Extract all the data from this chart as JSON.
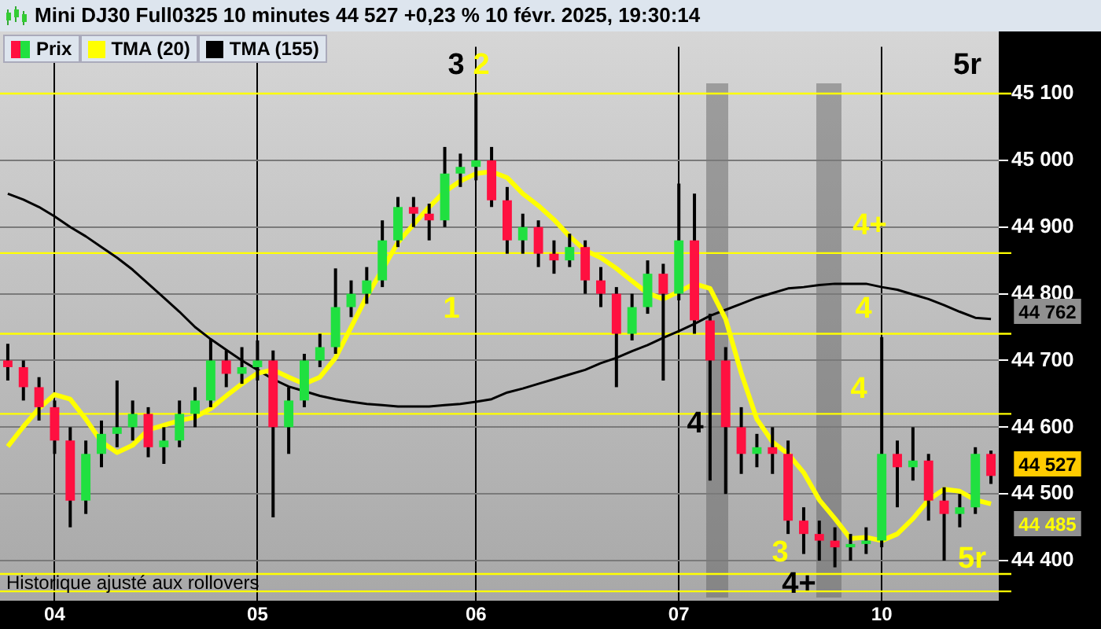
{
  "chart_data": {
    "type": "candlestick",
    "title": "Mini DJ30 Full0325 10 minutes 44 527 +0,23 % 10 févr. 2025, 19:30:14",
    "categories": [
      null,
      null,
      null,
      "04",
      null,
      null,
      null,
      null,
      null,
      null,
      null,
      null,
      null,
      null,
      null,
      null,
      "05",
      null,
      null,
      null,
      null,
      null,
      null,
      null,
      null,
      null,
      null,
      null,
      null,
      null,
      "06",
      null,
      null,
      null,
      null,
      null,
      null,
      null,
      null,
      null,
      null,
      null,
      null,
      "07",
      null,
      null,
      null,
      null,
      null,
      null,
      null,
      null,
      null,
      null,
      null,
      null,
      "10",
      null,
      null,
      null,
      null,
      null,
      null,
      null
    ],
    "series": [
      {
        "name": "Prix",
        "ohlc": [
          [
            44700,
            44725,
            44670,
            44690
          ],
          [
            44690,
            44700,
            44640,
            44660
          ],
          [
            44660,
            44675,
            44610,
            44630
          ],
          [
            44630,
            44640,
            44560,
            44580
          ],
          [
            44580,
            44600,
            44450,
            44490
          ],
          [
            44490,
            44580,
            44470,
            44560
          ],
          [
            44560,
            44610,
            44540,
            44590
          ],
          [
            44590,
            44670,
            44570,
            44600
          ],
          [
            44600,
            44640,
            44580,
            44620
          ],
          [
            44620,
            44630,
            44555,
            44570
          ],
          [
            44570,
            44600,
            44545,
            44580
          ],
          [
            44580,
            44640,
            44570,
            44620
          ],
          [
            44620,
            44660,
            44600,
            44640
          ],
          [
            44640,
            44732,
            44630,
            44700
          ],
          [
            44700,
            44715,
            44660,
            44680
          ],
          [
            44680,
            44720,
            44665,
            44690
          ],
          [
            44690,
            44730,
            44670,
            44700
          ],
          [
            44700,
            44715,
            44465,
            44600
          ],
          [
            44600,
            44660,
            44560,
            44640
          ],
          [
            44640,
            44710,
            44630,
            44700
          ],
          [
            44700,
            44740,
            44690,
            44720
          ],
          [
            44720,
            44838,
            44710,
            44780
          ],
          [
            44780,
            44820,
            44765,
            44800
          ],
          [
            44800,
            44840,
            44785,
            44820
          ],
          [
            44820,
            44910,
            44810,
            44880
          ],
          [
            44880,
            44945,
            44870,
            44930
          ],
          [
            44930,
            44945,
            44900,
            44920
          ],
          [
            44920,
            44935,
            44880,
            44910
          ],
          [
            44910,
            45020,
            44900,
            44980
          ],
          [
            44980,
            45010,
            44960,
            44990
          ],
          [
            44990,
            45100,
            44970,
            45000
          ],
          [
            45000,
            45020,
            44930,
            44940
          ],
          [
            44940,
            44960,
            44860,
            44880
          ],
          [
            44880,
            44920,
            44860,
            44900
          ],
          [
            44900,
            44910,
            44840,
            44860
          ],
          [
            44860,
            44880,
            44830,
            44850
          ],
          [
            44850,
            44890,
            44840,
            44870
          ],
          [
            44870,
            44880,
            44800,
            44820
          ],
          [
            44820,
            44840,
            44780,
            44800
          ],
          [
            44800,
            44810,
            44660,
            44740
          ],
          [
            44740,
            44800,
            44730,
            44780
          ],
          [
            44780,
            44850,
            44770,
            44830
          ],
          [
            44830,
            44845,
            44670,
            44800
          ],
          [
            44800,
            44965,
            44790,
            44880
          ],
          [
            44880,
            44950,
            44740,
            44760
          ],
          [
            44760,
            44770,
            44520,
            44700
          ],
          [
            44700,
            44720,
            44500,
            44600
          ],
          [
            44600,
            44630,
            44530,
            44560
          ],
          [
            44560,
            44590,
            44540,
            44570
          ],
          [
            44570,
            44600,
            44530,
            44560
          ],
          [
            44560,
            44580,
            44440,
            44460
          ],
          [
            44460,
            44480,
            44410,
            44440
          ],
          [
            44440,
            44460,
            44400,
            44430
          ],
          [
            44430,
            44450,
            44390,
            44420
          ],
          [
            44420,
            44440,
            44400,
            44425
          ],
          [
            44425,
            44450,
            44410,
            44430
          ],
          [
            44430,
            44735,
            44420,
            44560
          ],
          [
            44560,
            44580,
            44480,
            44540
          ],
          [
            44540,
            44600,
            44520,
            44550
          ],
          [
            44550,
            44560,
            44460,
            44490
          ],
          [
            44490,
            44510,
            44400,
            44470
          ],
          [
            44470,
            44500,
            44450,
            44480
          ],
          [
            44480,
            44570,
            44470,
            44560
          ],
          [
            44560,
            44565,
            44515,
            44527
          ]
        ],
        "colors": [
          "#ff1040",
          "#ff1040",
          "#ff1040",
          "#ff1040",
          "#ff1040",
          "#20e040",
          "#20e040",
          "#20e040",
          "#20e040",
          "#ff1040",
          "#20e040",
          "#20e040",
          "#20e040",
          "#20e040",
          "#ff1040",
          "#20e040",
          "#20e040",
          "#ff1040",
          "#20e040",
          "#20e040",
          "#20e040",
          "#20e040",
          "#20e040",
          "#20e040",
          "#20e040",
          "#20e040",
          "#ff1040",
          "#ff1040",
          "#20e040",
          "#20e040",
          "#20e040",
          "#ff1040",
          "#ff1040",
          "#20e040",
          "#ff1040",
          "#ff1040",
          "#20e040",
          "#ff1040",
          "#ff1040",
          "#ff1040",
          "#20e040",
          "#20e040",
          "#ff1040",
          "#20e040",
          "#ff1040",
          "#ff1040",
          "#ff1040",
          "#ff1040",
          "#20e040",
          "#ff1040",
          "#ff1040",
          "#ff1040",
          "#ff1040",
          "#ff1040",
          "#20e040",
          "#20e040",
          "#20e040",
          "#ff1040",
          "#20e040",
          "#ff1040",
          "#ff1040",
          "#20e040",
          "#20e040",
          "#ff1040"
        ]
      },
      {
        "name": "TMA (20)",
        "type": "line",
        "color": "#ffff00",
        "values": [
          44571,
          44601,
          44628,
          44649,
          44642,
          44612,
          44578,
          44562,
          44573,
          44596,
          44603,
          44610,
          44615,
          44628,
          44647,
          44665,
          44681,
          44686,
          44675,
          44665,
          44675,
          44704,
          44750,
          44796,
          44836,
          44877,
          44904,
          44930,
          44953,
          44969,
          44980,
          44983,
          44974,
          44950,
          44932,
          44911,
          44886,
          44865,
          44854,
          44838,
          44819,
          44801,
          44792,
          44803,
          44815,
          44808,
          44762,
          44681,
          44612,
          44578,
          44560,
          44532,
          44491,
          44463,
          44433,
          44435,
          44430,
          44440,
          44463,
          44491,
          44507,
          44504,
          44491,
          44485
        ]
      },
      {
        "name": "TMA (155)",
        "type": "line",
        "color": "#000000",
        "values": [
          44950,
          44941,
          44930,
          44916,
          44900,
          44886,
          44870,
          44854,
          44836,
          44815,
          44794,
          44773,
          44750,
          44732,
          44716,
          44700,
          44686,
          44672,
          44661,
          44654,
          44647,
          44642,
          44638,
          44635,
          44633,
          44631,
          44631,
          44631,
          44633,
          44635,
          44638,
          44642,
          44652,
          44658,
          44665,
          44672,
          44679,
          44686,
          44696,
          44704,
          44714,
          44723,
          44734,
          44744,
          44755,
          44767,
          44776,
          44785,
          44794,
          44801,
          44808,
          44810,
          44813,
          44815,
          44815,
          44815,
          44810,
          44806,
          44799,
          44792,
          44783,
          44773,
          44764,
          44762
        ]
      }
    ],
    "ylim": [
      44340,
      45170
    ],
    "yticks": [
      {
        "value": 44400,
        "label": "44 400"
      },
      {
        "value": 44500,
        "label": "44 500"
      },
      {
        "value": 44600,
        "label": "44 600"
      },
      {
        "value": 44700,
        "label": "44 700"
      },
      {
        "value": 44800,
        "label": "44 800"
      },
      {
        "value": 44900,
        "label": "44 900"
      },
      {
        "value": 45000,
        "label": "45 000"
      },
      {
        "value": 45100,
        "label": "45 100"
      }
    ],
    "ref_lines": [
      {
        "axis": "y",
        "value": 45100,
        "color": "#ffff00"
      },
      {
        "axis": "y",
        "value": 44861,
        "color": "#ffff00"
      },
      {
        "axis": "y",
        "value": 44740,
        "color": "#ffff00"
      },
      {
        "axis": "y",
        "value": 44620,
        "color": "#ffff00"
      },
      {
        "axis": "y",
        "value": 44380,
        "color": "#ffff00"
      },
      {
        "axis": "y",
        "value": 44354,
        "color": "#ffff00"
      }
    ],
    "annotations": [
      "3",
      "5r",
      "4",
      "4+",
      "44 762",
      "44 527",
      "44 485",
      "Historique ajusté aux rollovers",
      "2",
      "4+",
      "1",
      "4",
      "4",
      "3",
      "5r"
    ],
    "grid": true,
    "legend": "top left",
    "marker": "none",
    "line_style": "solid"
  }
}
